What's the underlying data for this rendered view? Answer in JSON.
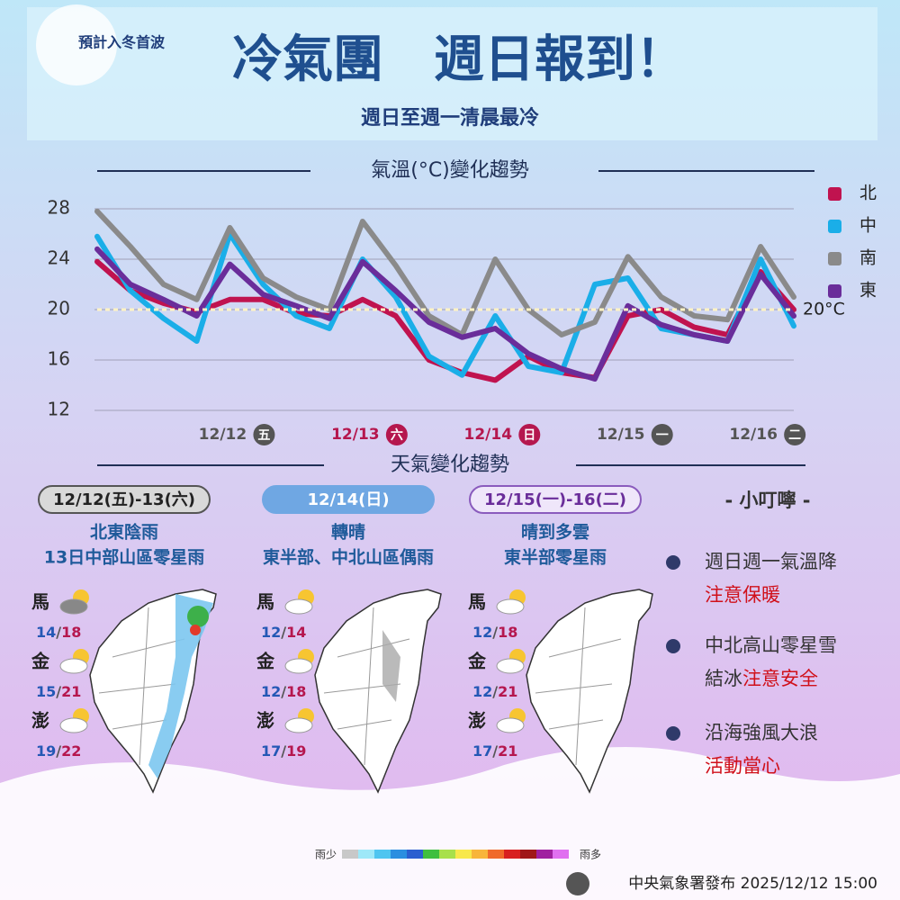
{
  "header": {
    "badge": "預計入冬首波",
    "title": "冷氣團　週日報到！",
    "subtitle": "週日至週一清晨最冷"
  },
  "chart_data": {
    "type": "line",
    "title": "氣溫(°C)變化趨勢",
    "categories": [
      null,
      null,
      null,
      null,
      "12/12",
      null,
      null,
      null,
      "12/13",
      null,
      null,
      null,
      "12/14",
      null,
      null,
      null,
      "12/15",
      null,
      null,
      null,
      "12/16",
      null
    ],
    "x_badges": [
      "五",
      "六",
      "日",
      "一",
      "二"
    ],
    "x_label_colors": [
      "#555555",
      "#b5174e",
      "#b5174e",
      "#555555",
      "#555555"
    ],
    "series": [
      {
        "name": "北",
        "color": "#c0134f",
        "values": [
          23.8,
          21.5,
          20.5,
          19.8,
          20.8,
          20.8,
          19.7,
          19.5,
          20.8,
          19.5,
          16,
          15,
          14.4,
          16.3,
          15,
          14.6,
          19.5,
          20,
          18.6,
          18,
          23,
          20
        ]
      },
      {
        "name": "中",
        "color": "#1aaee8",
        "values": [
          25.8,
          21.5,
          19.3,
          17.5,
          26,
          22,
          19.5,
          18.5,
          24,
          21,
          16.3,
          14.8,
          19.5,
          15.5,
          15,
          22,
          22.5,
          18.5,
          18,
          17.5,
          24,
          18.7
        ]
      },
      {
        "name": "南",
        "color": "#8a8a8a",
        "values": [
          27.8,
          25,
          22,
          20.8,
          26.5,
          22.5,
          21,
          20,
          27,
          23.5,
          19.5,
          18,
          24,
          20,
          18,
          19,
          24.2,
          21,
          19.5,
          19.2,
          25,
          21
        ]
      },
      {
        "name": "東",
        "color": "#6a2d9a",
        "values": [
          24.8,
          22,
          20.8,
          19.5,
          23.6,
          21.2,
          20.3,
          19.3,
          23.8,
          21.5,
          19,
          17.8,
          18.5,
          16.5,
          15.3,
          14.5,
          20.3,
          18.8,
          18,
          17.5,
          22.8,
          19.5
        ]
      }
    ],
    "ylim": [
      11,
      29
    ],
    "yticks": [
      12,
      16,
      20,
      24,
      28
    ],
    "grid": true,
    "legend": "right",
    "reference": {
      "value": 20,
      "label": "20°C"
    }
  },
  "weather": {
    "title": "天氣變化趨勢",
    "temp_separator": "/",
    "panels": [
      {
        "period": "12/12(五)-13(六)",
        "lines": [
          "北東陰雨",
          "13日中部山區零星雨"
        ],
        "stations": [
          {
            "name": "馬",
            "low": 14,
            "high": 18
          },
          {
            "name": "金",
            "low": 15,
            "high": 21
          },
          {
            "name": "澎",
            "low": 19,
            "high": 22
          }
        ]
      },
      {
        "period": "12/14(日)",
        "lines": [
          "轉晴",
          "東半部、中北山區偶雨"
        ],
        "stations": [
          {
            "name": "馬",
            "low": 12,
            "high": 14
          },
          {
            "name": "金",
            "low": 12,
            "high": 18
          },
          {
            "name": "澎",
            "low": 17,
            "high": 19
          }
        ]
      },
      {
        "period": "12/15(一)-16(二)",
        "lines": [
          "晴到多雲",
          "東半部零星雨"
        ],
        "stations": [
          {
            "name": "馬",
            "low": 12,
            "high": 18
          },
          {
            "name": "金",
            "low": 12,
            "high": 21
          },
          {
            "name": "澎",
            "low": 17,
            "high": 21
          }
        ]
      }
    ],
    "rain_scale": [
      "雨少",
      "雨多"
    ]
  },
  "tips": {
    "title": "- 小叮嚀 -",
    "items": [
      [
        {
          "text": "週日週一氣溫降",
          "emphasis": false
        },
        {
          "text": "注意保暖",
          "emphasis": true
        }
      ],
      [
        {
          "text": "中北高山零星雪",
          "emphasis": false
        },
        {
          "text": "結冰",
          "emphasis": false
        },
        {
          "text": "注意安全",
          "emphasis": true
        }
      ],
      [
        {
          "text": "沿海強風大浪",
          "emphasis": false
        },
        {
          "text": "活動當心",
          "emphasis": true
        }
      ]
    ]
  },
  "footer": "中央氣象署發布 2025/12/12 15:00"
}
